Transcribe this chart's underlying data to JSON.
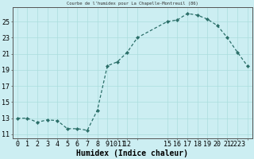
{
  "x": [
    0,
    1,
    2,
    3,
    4,
    5,
    6,
    7,
    8,
    9,
    10,
    11,
    12,
    15,
    16,
    17,
    18,
    19,
    20,
    21,
    22,
    23
  ],
  "y": [
    13,
    13,
    12.5,
    12.8,
    12.7,
    11.7,
    11.7,
    11.5,
    14.0,
    19.5,
    20.0,
    21.2,
    23.0,
    25.0,
    25.2,
    26.0,
    25.8,
    25.3,
    24.5,
    23.0,
    21.2,
    19.5
  ],
  "line_color": "#2a6e68",
  "marker_color": "#2a6e68",
  "bg_color": "#cceef2",
  "grid_color": "#aadddd",
  "xlabel": "Humidex (Indice chaleur)",
  "title": "Courbe de l'humidex pour La Chapelle-Montreuil (86)",
  "xlim": [
    -0.5,
    23.5
  ],
  "ylim": [
    10.5,
    26.8
  ],
  "yticks": [
    11,
    13,
    15,
    17,
    19,
    21,
    23,
    25
  ],
  "xtick_positions": [
    0,
    1,
    2,
    3,
    4,
    5,
    6,
    7,
    8,
    9,
    10,
    11,
    12,
    15,
    16,
    17,
    18,
    19,
    20,
    21,
    22,
    23
  ],
  "xtick_labels": [
    "0",
    "1",
    "2",
    "3",
    "4",
    "5",
    "6",
    "7",
    "8",
    "9",
    "1011",
    "12",
    "",
    "15",
    "16",
    "17",
    "18",
    "19",
    "20",
    "21",
    "2223",
    ""
  ],
  "font_size": 6,
  "xlabel_fontsize": 7
}
